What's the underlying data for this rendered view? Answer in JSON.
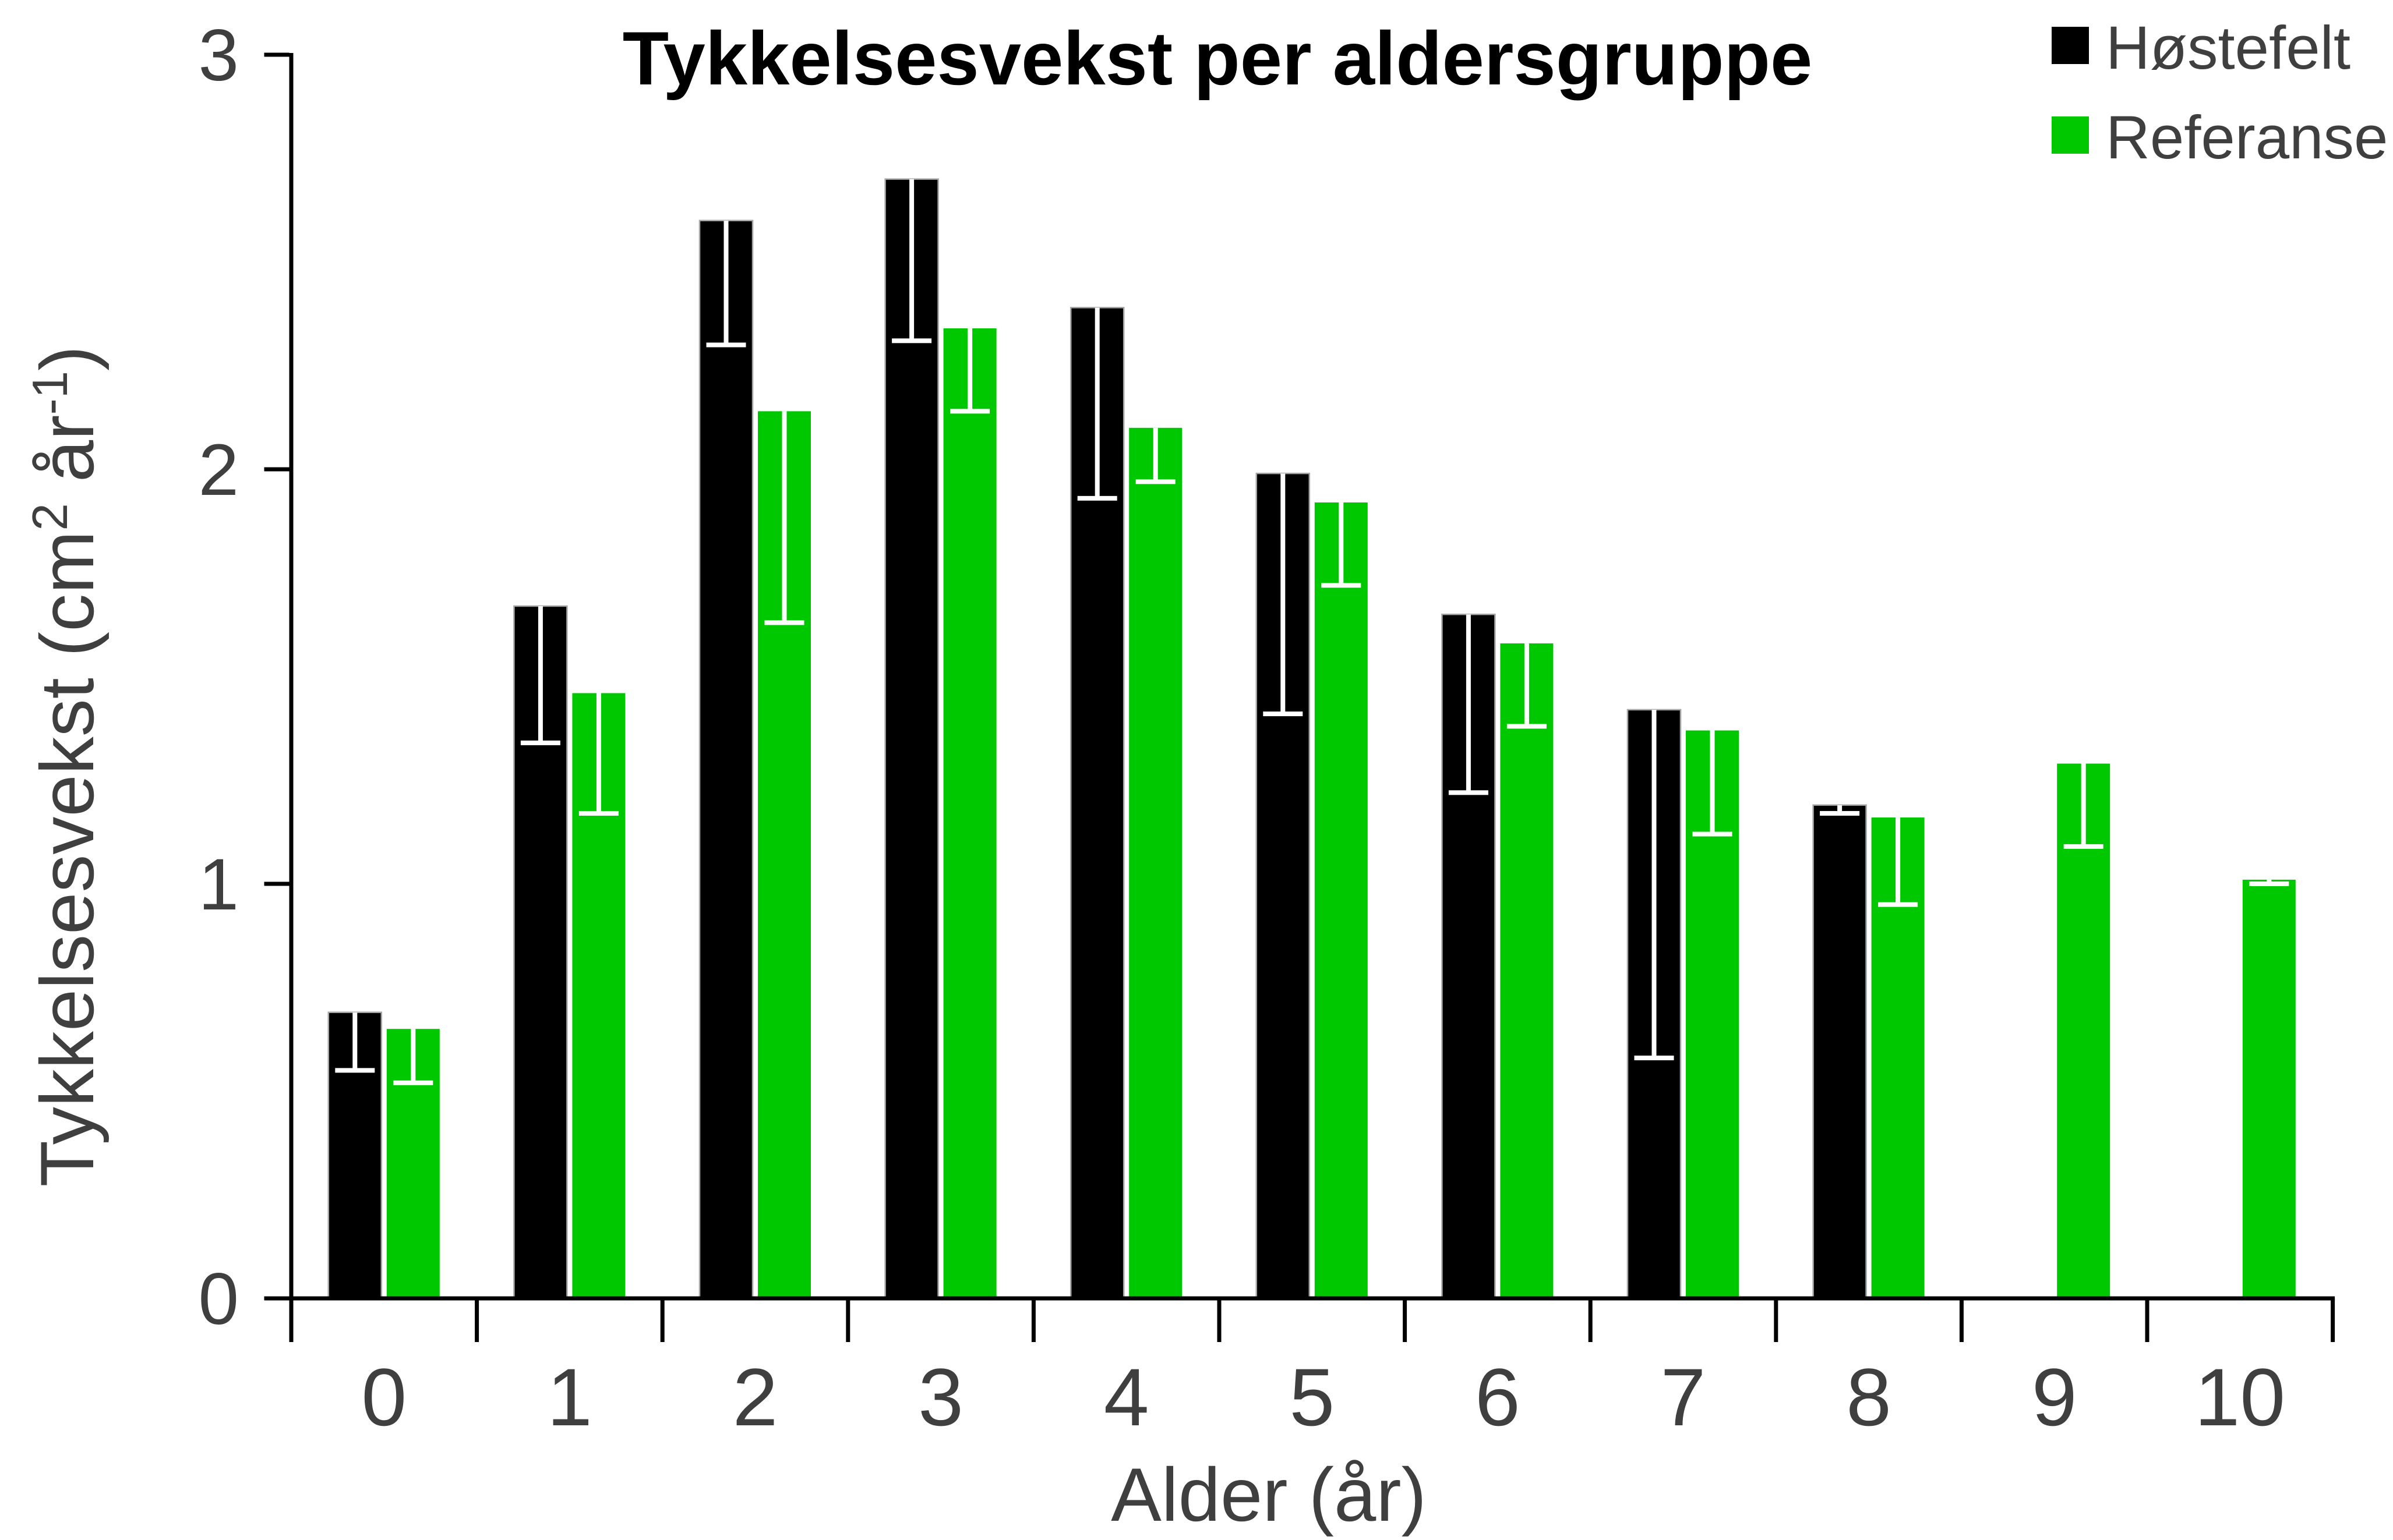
{
  "title": "Tykkelsesvekst per aldersgruppe",
  "legend": [
    {
      "label": "Høstefelt",
      "color": "#000000"
    },
    {
      "label": "Referanse",
      "color": "#00C800"
    }
  ],
  "colors": {
    "bar_black": "#000000",
    "bar_green": "#00C800",
    "bar_black_outline": "#a6a6a6",
    "error_bar": "#ffffff",
    "axis": "#000000",
    "text": "#3f3f3f",
    "title_text": "#000000",
    "background": "#ffffff"
  },
  "y_axis": {
    "tick_labels": [
      "0",
      "1",
      "2",
      "3"
    ],
    "title_segments": [
      {
        "t": "Tykkelsesvekst  (cm"
      },
      {
        "t": "2",
        "sup": true
      },
      {
        "t": " år"
      },
      {
        "t": "-1",
        "sup": true
      },
      {
        "t": ")"
      }
    ]
  },
  "x_axis": {
    "title": "Alder  (år)",
    "tick_labels": [
      "0",
      "1",
      "2",
      "3",
      "4",
      "5",
      "6",
      "7",
      "8",
      "9",
      "10"
    ]
  },
  "chart_data": {
    "type": "bar",
    "title": "Tykkelsesvekst per aldersgruppe",
    "categories": [
      0,
      1,
      2,
      3,
      4,
      5,
      6,
      7,
      8,
      9,
      10
    ],
    "xlabel": "Alder  (år)",
    "ylabel": "Tykkelsesvekst (cm2 år-1)",
    "ylim": [
      0,
      3
    ],
    "yticks": [
      0,
      1,
      2,
      3
    ],
    "grid": false,
    "legend_position": "top-right",
    "error_bars": "minus-only, white, drawn inside bars",
    "series": [
      {
        "name": "Høstefelt",
        "color": "#000000",
        "values": [
          0.69,
          1.67,
          2.6,
          2.7,
          2.39,
          1.99,
          1.65,
          1.42,
          1.19,
          null,
          null
        ],
        "error_minus": [
          0.14,
          0.33,
          0.3,
          0.39,
          0.46,
          0.58,
          0.43,
          0.84,
          0.02,
          null,
          null
        ]
      },
      {
        "name": "Referanse",
        "color": "#00C800",
        "values": [
          0.65,
          1.46,
          2.14,
          2.34,
          2.1,
          1.92,
          1.58,
          1.37,
          1.16,
          1.29,
          1.01
        ],
        "error_minus": [
          0.13,
          0.29,
          0.51,
          0.2,
          0.13,
          0.2,
          0.2,
          0.25,
          0.21,
          0.2,
          0.01
        ]
      }
    ]
  }
}
